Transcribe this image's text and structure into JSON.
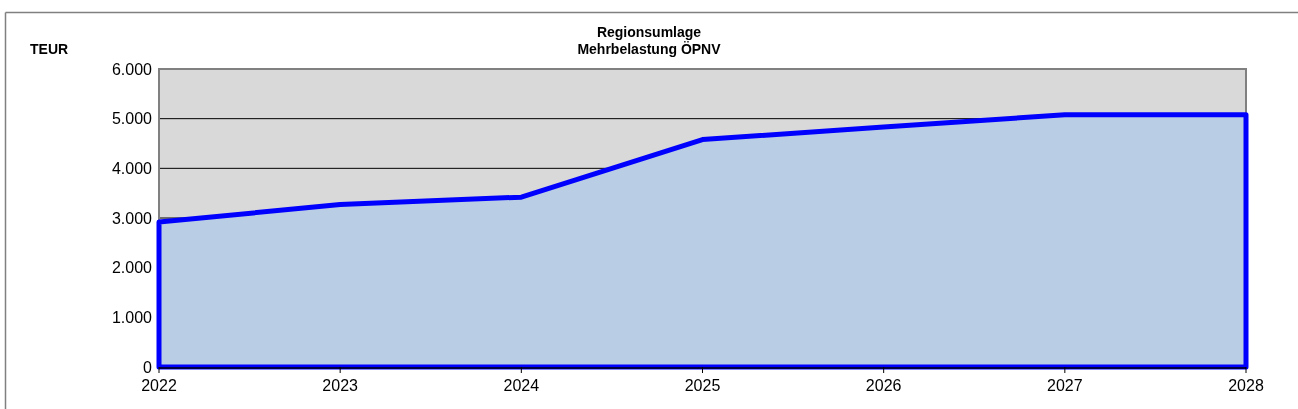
{
  "chart_data": {
    "type": "area",
    "title": "Regionsumlage",
    "subtitle": "Mehrbelastung ÖPNV",
    "ylabel": "TEUR",
    "x": [
      2022,
      2023,
      2024,
      2025,
      2026,
      2027,
      2028
    ],
    "series": [
      {
        "color": "#b9cde5",
        "values": [
          2920,
          3270,
          3420,
          4580,
          4830,
          5080,
          5080
        ]
      }
    ],
    "xlim": [
      2022,
      2028
    ],
    "xticks": [
      2022,
      2023,
      2024,
      2025,
      2026,
      2027,
      2028
    ],
    "ylim": [
      0,
      6000
    ],
    "yticks": [
      0,
      {
        "value": 1000,
        "label": "1.000"
      },
      {
        "value": 2000,
        "label": "2.000"
      },
      {
        "value": 3000,
        "label": "3.000"
      },
      {
        "value": 4000,
        "label": "4.000"
      },
      {
        "value": 5000,
        "label": "5.000"
      },
      {
        "value": 6000,
        "label": "6.000"
      }
    ],
    "grid": "y"
  }
}
